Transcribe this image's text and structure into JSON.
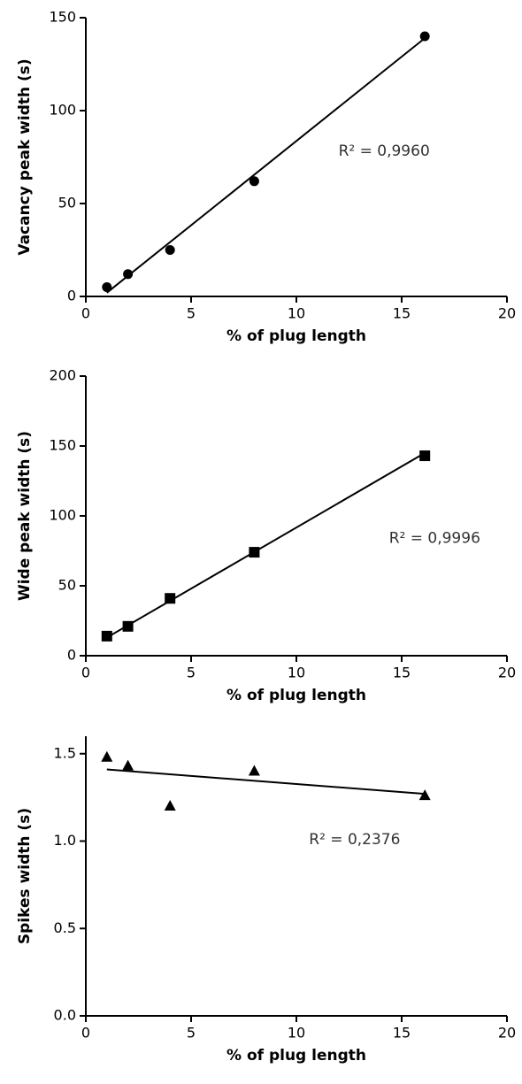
{
  "chart_data": [
    {
      "type": "scatter",
      "xlabel": "% of plug length",
      "ylabel": "Vacancy peak width (s)",
      "annotation": "R² = 0,9960",
      "marker": "circle",
      "color": "#000000",
      "x": [
        1,
        2,
        4,
        8,
        16.1
      ],
      "values": [
        5,
        12,
        25,
        62,
        140
      ],
      "trendline": {
        "x": [
          1,
          16.1
        ],
        "y": [
          2,
          139
        ]
      },
      "xlim": [
        0,
        20
      ],
      "xticks": [
        0,
        5,
        10,
        15,
        20
      ],
      "ylim": [
        0,
        150
      ],
      "yticks": [
        0,
        50,
        100,
        150
      ]
    },
    {
      "type": "scatter",
      "xlabel": "% of plug length",
      "ylabel": "Wide peak width (s)",
      "annotation": "R² = 0,9996",
      "marker": "square",
      "color": "#000000",
      "x": [
        1,
        2,
        4,
        8,
        16.1
      ],
      "values": [
        14,
        21,
        41,
        74,
        143
      ],
      "trendline": {
        "x": [
          1,
          16.1
        ],
        "y": [
          13,
          145
        ]
      },
      "xlim": [
        0,
        20
      ],
      "xticks": [
        0,
        5,
        10,
        15,
        20
      ],
      "ylim": [
        0,
        200
      ],
      "yticks": [
        0,
        50,
        100,
        150,
        200
      ]
    },
    {
      "type": "scatter",
      "xlabel": "% of plug length",
      "ylabel": "Spikes width (s)",
      "annotation": "R² = 0,2376",
      "marker": "triangle",
      "color": "#000000",
      "x": [
        1,
        2,
        4,
        8,
        16.1
      ],
      "values": [
        1.48,
        1.43,
        1.2,
        1.4,
        1.26
      ],
      "trendline": {
        "x": [
          1,
          16.1
        ],
        "y": [
          1.41,
          1.27
        ]
      },
      "xlim": [
        0,
        20
      ],
      "xticks": [
        0,
        5,
        10,
        15,
        20
      ],
      "ylim": [
        0,
        1.6
      ],
      "yticks": [
        {
          "value": 0,
          "label": "0.0"
        },
        {
          "value": 0.5,
          "label": "0.5"
        },
        {
          "value": 1,
          "label": "1.0"
        },
        {
          "value": 1.5,
          "label": "1.5"
        }
      ]
    }
  ]
}
